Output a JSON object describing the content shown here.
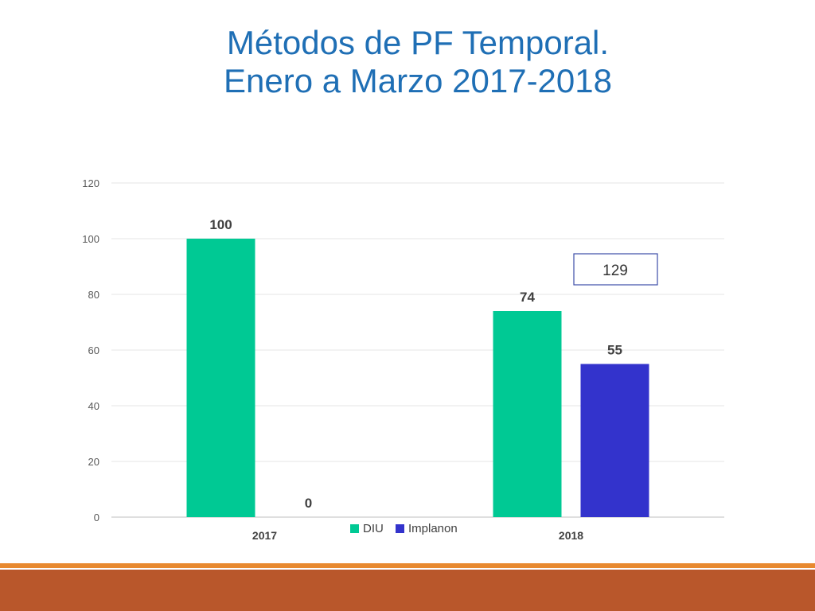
{
  "title": {
    "line1": "Métodos de PF Temporal.",
    "line2": "Enero a Marzo 2017-2018"
  },
  "chart_data": {
    "type": "bar",
    "categories": [
      "2017",
      "2018"
    ],
    "series": [
      {
        "name": "DIU",
        "values": [
          100,
          74
        ],
        "labels": [
          "100",
          "74"
        ],
        "color": "#00c994"
      },
      {
        "name": "Implanon",
        "values": [
          0,
          55
        ],
        "labels": [
          "0",
          "55"
        ],
        "color": "#3333cc"
      }
    ],
    "ylim": [
      0,
      120
    ],
    "yticks": [
      "0",
      "20",
      "40",
      "60",
      "80",
      "100",
      "120"
    ],
    "grid": true,
    "legend_position": "bottom",
    "annotation": "129"
  },
  "colors": {
    "title": "#1f6fb5",
    "footer_line": "#e8892f",
    "footer_band": "#b9572b"
  }
}
